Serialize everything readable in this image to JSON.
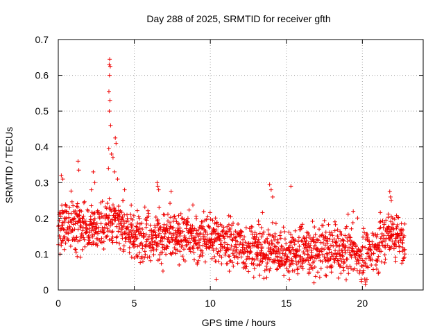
{
  "chart_data": {
    "type": "scatter",
    "title": "Day 288 of 2025, SRMTID for receiver gfth",
    "xlabel": "GPS time / hours",
    "ylabel": "SRMTID / TECUs",
    "xlim": [
      0,
      24
    ],
    "ylim": [
      0,
      0.7
    ],
    "xticks": [
      0,
      5,
      10,
      15,
      20
    ],
    "xtick_labels": [
      "0",
      "5",
      "10",
      "15",
      "20"
    ],
    "yticks": [
      0,
      0.1,
      0.2,
      0.3,
      0.4,
      0.5,
      0.6,
      0.7
    ],
    "ytick_labels": [
      "0",
      "0.1",
      "0.2",
      "0.3",
      "0.4",
      "0.5",
      "0.6",
      "0.7"
    ],
    "grid": true,
    "marker": "plus",
    "series": [
      {
        "name": "SRMTID",
        "color": "#ee0000",
        "x_range": [
          0,
          22.8
        ],
        "sample_step_hours": 0.02,
        "baseline_profile": [
          [
            0.0,
            0.17
          ],
          [
            1.0,
            0.18
          ],
          [
            2.0,
            0.17
          ],
          [
            3.0,
            0.18
          ],
          [
            3.4,
            0.2
          ],
          [
            4.0,
            0.19
          ],
          [
            5.0,
            0.15
          ],
          [
            6.0,
            0.15
          ],
          [
            7.0,
            0.15
          ],
          [
            8.0,
            0.15
          ],
          [
            9.0,
            0.14
          ],
          [
            10.0,
            0.14
          ],
          [
            11.0,
            0.13
          ],
          [
            12.0,
            0.12
          ],
          [
            13.0,
            0.12
          ],
          [
            14.0,
            0.11
          ],
          [
            15.0,
            0.1
          ],
          [
            16.0,
            0.11
          ],
          [
            17.0,
            0.11
          ],
          [
            18.0,
            0.11
          ],
          [
            19.0,
            0.11
          ],
          [
            20.0,
            0.09
          ],
          [
            20.5,
            0.1
          ],
          [
            21.0,
            0.12
          ],
          [
            21.8,
            0.17
          ],
          [
            22.5,
            0.14
          ],
          [
            22.8,
            0.12
          ]
        ],
        "spread": 0.045,
        "peaks": [
          {
            "x": 3.38,
            "y": 0.645
          },
          {
            "x": 3.35,
            "y": 0.63
          },
          {
            "x": 3.42,
            "y": 0.625
          },
          {
            "x": 3.37,
            "y": 0.6
          },
          {
            "x": 3.33,
            "y": 0.555
          },
          {
            "x": 3.4,
            "y": 0.53
          },
          {
            "x": 3.36,
            "y": 0.5
          },
          {
            "x": 3.44,
            "y": 0.46
          },
          {
            "x": 3.75,
            "y": 0.425
          },
          {
            "x": 3.8,
            "y": 0.41
          },
          {
            "x": 3.32,
            "y": 0.395
          },
          {
            "x": 3.5,
            "y": 0.38
          },
          {
            "x": 3.6,
            "y": 0.37
          },
          {
            "x": 3.7,
            "y": 0.33
          },
          {
            "x": 3.9,
            "y": 0.31
          },
          {
            "x": 3.3,
            "y": 0.34
          },
          {
            "x": 0.2,
            "y": 0.32
          },
          {
            "x": 0.3,
            "y": 0.31
          },
          {
            "x": 1.3,
            "y": 0.36
          },
          {
            "x": 1.35,
            "y": 0.335
          },
          {
            "x": 2.3,
            "y": 0.33
          },
          {
            "x": 2.4,
            "y": 0.3
          },
          {
            "x": 6.5,
            "y": 0.3
          },
          {
            "x": 6.55,
            "y": 0.29
          },
          {
            "x": 6.6,
            "y": 0.28
          },
          {
            "x": 13.9,
            "y": 0.295
          },
          {
            "x": 14.0,
            "y": 0.28
          },
          {
            "x": 15.3,
            "y": 0.29
          },
          {
            "x": 14.1,
            "y": 0.26
          },
          {
            "x": 21.8,
            "y": 0.275
          },
          {
            "x": 21.85,
            "y": 0.26
          },
          {
            "x": 21.9,
            "y": 0.25
          },
          {
            "x": 19.4,
            "y": 0.22
          },
          {
            "x": 10.4,
            "y": 0.03
          },
          {
            "x": 15.2,
            "y": 0.03
          },
          {
            "x": 20.2,
            "y": 0.015
          },
          {
            "x": 20.3,
            "y": 0.03
          },
          {
            "x": 16.5,
            "y": 0.05
          }
        ]
      }
    ]
  }
}
